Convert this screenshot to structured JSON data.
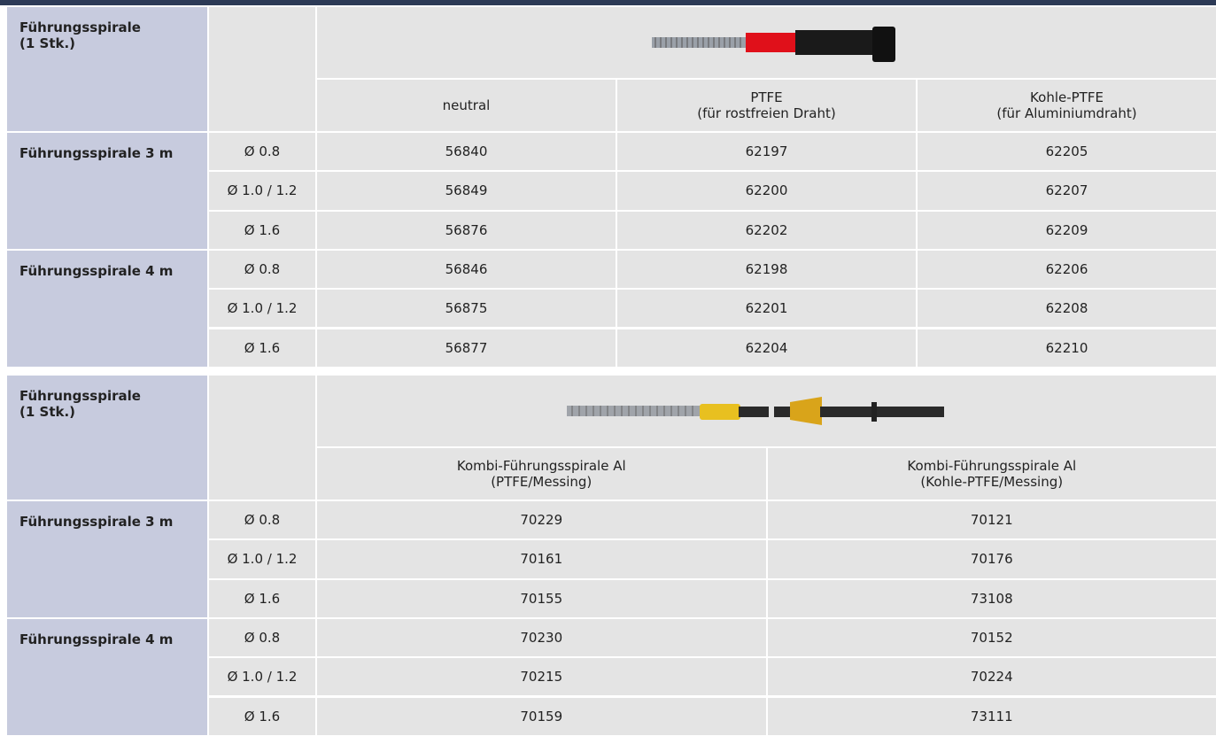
{
  "tables": [
    {
      "title": [
        "Führungsspirale",
        "(1 Stk.)"
      ],
      "columns": [
        [
          "neutral"
        ],
        [
          "PTFE",
          "(für rostfreien Draht)"
        ],
        [
          "Kohle-PTFE",
          "(für Aluminiumdraht)"
        ]
      ],
      "groups": [
        {
          "label": "Führungsspirale 3 m",
          "rows": [
            {
              "size": "Ø 0.8",
              "values": [
                "56840",
                "62197",
                "62205"
              ]
            },
            {
              "size": "Ø 1.0 / 1.2",
              "values": [
                "56849",
                "62200",
                "62207"
              ]
            },
            {
              "size": "Ø 1.6",
              "values": [
                "56876",
                "62202",
                "62209"
              ]
            }
          ]
        },
        {
          "label": "Führungsspirale 4 m",
          "rows": [
            {
              "size": "Ø 0.8",
              "values": [
                "56846",
                "62198",
                "62206"
              ]
            },
            {
              "size": "Ø 1.0 / 1.2",
              "values": [
                "56875",
                "62201",
                "62208"
              ]
            },
            {
              "size": "Ø 1.6",
              "values": [
                "56877",
                "62204",
                "62210"
              ]
            }
          ]
        }
      ]
    },
    {
      "title": [
        "Führungsspirale",
        "(1 Stk.)"
      ],
      "columns": [
        [
          "Kombi-Führungsspirale Al",
          "(PTFE/Messing)"
        ],
        [
          "Kombi-Führungsspirale Al",
          "(Kohle-PTFE/Messing)"
        ]
      ],
      "groups": [
        {
          "label": "Führungsspirale 3 m",
          "rows": [
            {
              "size": "Ø 0.8",
              "values": [
                "70229",
                "70121"
              ]
            },
            {
              "size": "Ø 1.0 / 1.2",
              "values": [
                "70161",
                "70176"
              ]
            },
            {
              "size": "Ø 1.6",
              "values": [
                "70155",
                "73108"
              ]
            }
          ]
        },
        {
          "label": "Führungsspirale 4 m",
          "rows": [
            {
              "size": "Ø 0.8",
              "values": [
                "70230",
                "70152"
              ]
            },
            {
              "size": "Ø 1.0 / 1.2",
              "values": [
                "70215",
                "70224"
              ]
            },
            {
              "size": "Ø 1.6",
              "values": [
                "70159",
                "73111"
              ]
            }
          ]
        }
      ]
    }
  ]
}
